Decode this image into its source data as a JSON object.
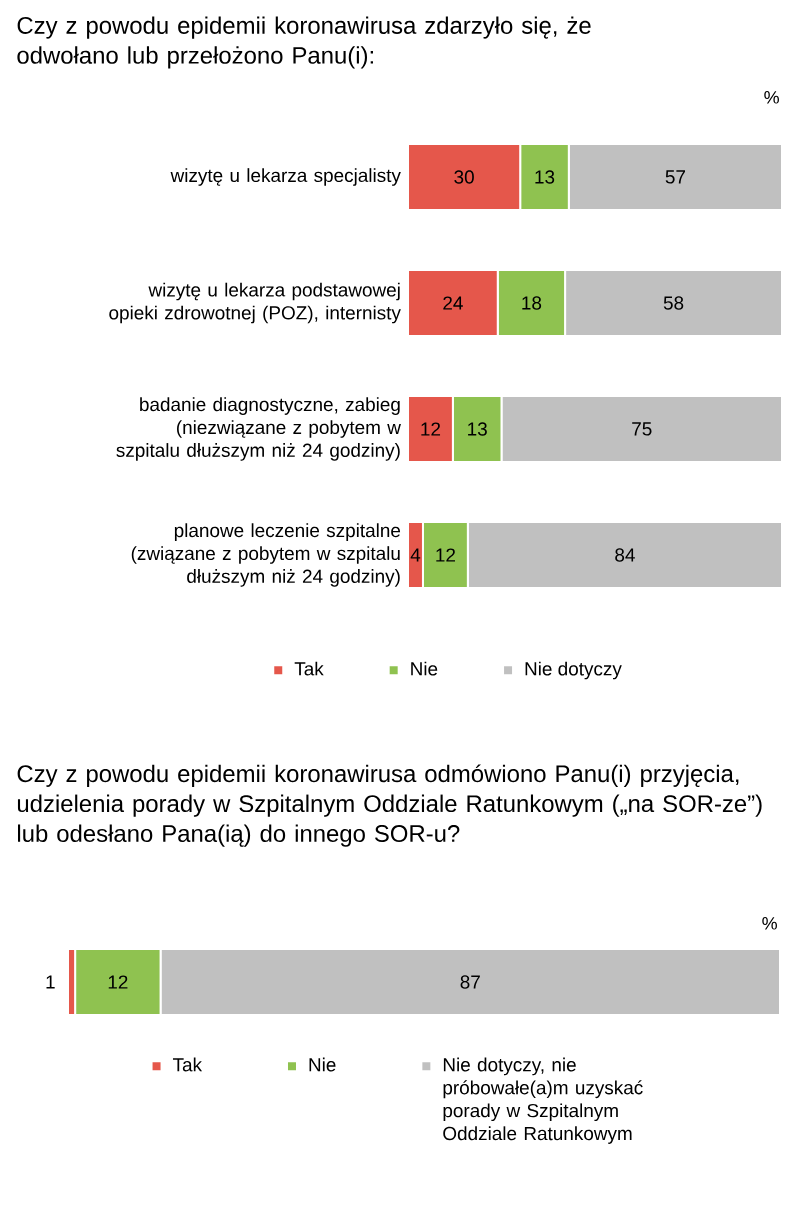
{
  "chart_data": [
    {
      "type": "bar",
      "orientation": "horizontal",
      "stacked": true,
      "title": "Czy z powodu epidemii koronawirusa zdarzyło się, że odwołano lub przełożono Panu(i):",
      "categories": [
        "wizytę u lekarza specjalisty",
        "wizytę u lekarza podstawowej opieki zdrowotnej (POZ), internisty",
        "badanie diagnostyczne, zabieg (niezwiązane z pobytem w szpitalu dłuższym niż 24 godziny)",
        "planowe leczenie szpitalne (związane z pobytem w szpitalu dłuższym niż 24 godziny)"
      ],
      "series": [
        {
          "name": "Tak",
          "color": "#e5574b",
          "values": [
            30,
            24,
            12,
            4
          ]
        },
        {
          "name": "Nie",
          "color": "#8fc250",
          "values": [
            13,
            18,
            13,
            12
          ]
        },
        {
          "name": "Nie dotyczy",
          "color": "#c0c0c0",
          "values": [
            57,
            58,
            75,
            84
          ]
        }
      ],
      "data_labels": true,
      "legend": "bottom",
      "tick_labels": "y",
      "annotations": [
        "%"
      ]
    },
    {
      "type": "bar",
      "orientation": "horizontal",
      "stacked": true,
      "title": "Czy z powodu epidemii koronawirusa odmówiono Panu(i) przyjęcia, udzielenia porady w Szpitalnym Oddziale Ratunkowym („na SOR-ze”) lub odesłano Pana(ią) do innego SOR-u?",
      "categories": [
        null
      ],
      "series": [
        {
          "name": "Tak",
          "color": "#e5574b",
          "values": [
            1
          ]
        },
        {
          "name": "Nie",
          "color": "#8fc250",
          "values": [
            12
          ]
        },
        {
          "name": "Nie dotyczy, nie próbowałe(a)m uzyskać porady w Szpitalnym Oddziale Ratunkowym",
          "color": "#c0c0c0",
          "values": [
            87
          ]
        }
      ],
      "data_labels": true,
      "legend": "bottom",
      "tick_labels": false,
      "annotations": [
        "%"
      ]
    }
  ]
}
